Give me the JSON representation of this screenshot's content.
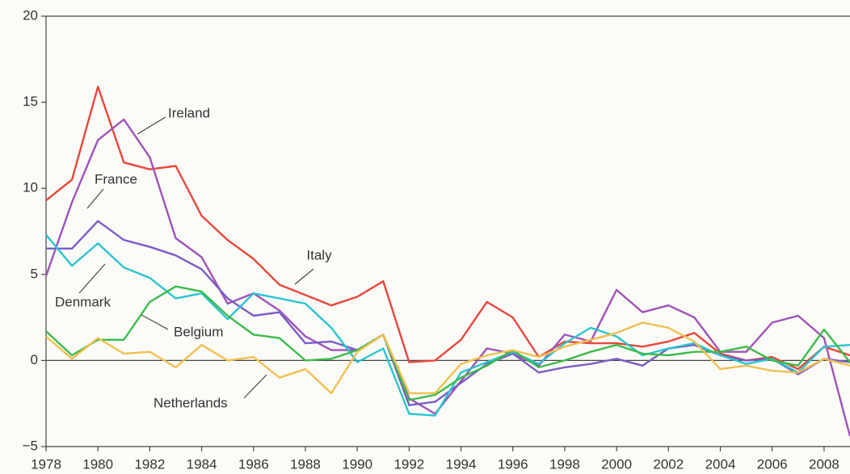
{
  "chart_data": {
    "type": "line",
    "x": [
      1978,
      1979,
      1980,
      1981,
      1982,
      1983,
      1984,
      1985,
      1986,
      1987,
      1988,
      1989,
      1990,
      1991,
      1992,
      1993,
      1994,
      1995,
      1996,
      1997,
      1998,
      1999,
      2000,
      2001,
      2002,
      2003,
      2004,
      2005,
      2006,
      2007,
      2008,
      2009
    ],
    "xlim": [
      1978,
      2009
    ],
    "xticks": [
      1978,
      1980,
      1982,
      1984,
      1986,
      1988,
      1990,
      1992,
      1994,
      1996,
      1998,
      2000,
      2002,
      2004,
      2006,
      2008
    ],
    "ylim": [
      -5,
      20
    ],
    "yticks": [
      {
        "value": -5,
        "label": "−5"
      },
      0,
      5,
      10,
      15,
      20
    ],
    "series": [
      {
        "name": "Italy",
        "color": "#e8473a",
        "values": [
          9.3,
          10.5,
          15.9,
          11.5,
          11.1,
          11.3,
          8.4,
          7.0,
          5.9,
          4.4,
          3.8,
          3.2,
          3.7,
          4.6,
          -0.1,
          0.0,
          1.2,
          3.4,
          2.5,
          0.2,
          1.1,
          1.0,
          1.0,
          0.8,
          1.1,
          1.6,
          0.4,
          0.0,
          0.2,
          -0.5,
          0.8,
          0.3
        ]
      },
      {
        "name": "Ireland",
        "color": "#a052b8",
        "values": [
          4.9,
          9.2,
          12.8,
          14.0,
          11.8,
          7.1,
          6.0,
          3.3,
          3.9,
          2.9,
          1.4,
          0.6,
          0.6,
          1.5,
          -2.2,
          -3.1,
          -1.2,
          0.7,
          0.4,
          -0.3,
          1.5,
          1.1,
          4.1,
          2.8,
          3.2,
          2.5,
          0.5,
          0.5,
          2.2,
          2.6,
          1.3,
          -4.4
        ]
      },
      {
        "name": "France",
        "color": "#7b5cc4",
        "values": [
          6.5,
          6.5,
          8.1,
          7.0,
          6.6,
          6.1,
          5.3,
          3.6,
          2.6,
          2.8,
          1.0,
          1.1,
          0.6,
          1.5,
          -2.6,
          -2.4,
          -1.3,
          -0.2,
          0.4,
          -0.7,
          -0.4,
          -0.2,
          0.1,
          -0.3,
          0.7,
          0.9,
          0.3,
          0.0,
          0.1,
          -0.8,
          0.1,
          -0.1
        ]
      },
      {
        "name": "Denmark",
        "color": "#29c4d0",
        "values": [
          7.3,
          5.5,
          6.8,
          5.4,
          4.8,
          3.6,
          3.9,
          2.4,
          3.9,
          3.6,
          3.3,
          1.9,
          -0.1,
          0.7,
          -3.1,
          -3.2,
          -0.7,
          -0.1,
          0.5,
          -0.2,
          1.0,
          1.9,
          1.4,
          0.3,
          0.7,
          1.0,
          0.3,
          -0.2,
          0.1,
          -0.7,
          0.8,
          0.9
        ]
      },
      {
        "name": "Belgium",
        "color": "#3dbb4a",
        "values": [
          1.7,
          0.3,
          1.2,
          1.2,
          3.4,
          4.3,
          4.0,
          2.6,
          1.5,
          1.3,
          0.0,
          0.1,
          0.6,
          1.5,
          -2.3,
          -2.0,
          -1.0,
          -0.3,
          0.6,
          -0.4,
          0.0,
          0.5,
          0.9,
          0.4,
          0.3,
          0.5,
          0.5,
          0.8,
          0.0,
          -0.3,
          1.8,
          -0.1
        ]
      },
      {
        "name": "Netherlands",
        "color": "#f0c050",
        "values": [
          1.4,
          0.1,
          1.3,
          0.4,
          0.5,
          -0.4,
          0.9,
          0.0,
          0.2,
          -1.0,
          -0.5,
          -1.9,
          0.5,
          1.5,
          -1.9,
          -1.9,
          -0.2,
          0.3,
          0.6,
          0.2,
          0.8,
          1.2,
          1.6,
          2.2,
          1.9,
          1.1,
          -0.5,
          -0.3,
          -0.6,
          -0.7,
          0.1,
          -0.3
        ]
      }
    ]
  }
}
